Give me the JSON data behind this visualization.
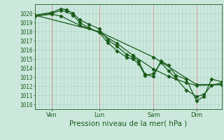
{
  "title": "",
  "xlabel": "Pression niveau de la mer( hPa )",
  "bg_color": "#cce8dd",
  "grid_color_major": "#aad4c8",
  "grid_color_minor": "#bbddd4",
  "line_color": "#1a5c1a",
  "vline_color": "#cc9999",
  "ylim": [
    1009.5,
    1021.0
  ],
  "yticks": [
    1010,
    1011,
    1012,
    1013,
    1014,
    1015,
    1016,
    1017,
    1018,
    1019,
    1020
  ],
  "xtick_labels": [
    "Ven",
    "Lun",
    "Sam",
    "Dim"
  ],
  "xtick_positions": [
    0.09,
    0.345,
    0.635,
    0.865
  ],
  "vline_positions": [
    0.09,
    0.345,
    0.635,
    0.865
  ],
  "line1_x": [
    0.0,
    0.09,
    0.14,
    0.17,
    0.205,
    0.24,
    0.29,
    0.345,
    0.39,
    0.44,
    0.49,
    0.525,
    0.555,
    0.59,
    0.635,
    0.675,
    0.715,
    0.755,
    0.81,
    0.865,
    0.905,
    0.945,
    1.0
  ],
  "line1_y": [
    1019.8,
    1020.1,
    1020.5,
    1020.4,
    1020.0,
    1019.3,
    1018.8,
    1018.3,
    1017.1,
    1016.4,
    1015.5,
    1015.2,
    1014.8,
    1013.3,
    1013.1,
    1014.8,
    1014.3,
    1013.2,
    1012.8,
    1010.4,
    1010.9,
    1012.8,
    1012.5
  ],
  "line2_x": [
    0.0,
    0.09,
    0.14,
    0.17,
    0.205,
    0.24,
    0.29,
    0.345,
    0.39,
    0.44,
    0.49,
    0.525,
    0.555,
    0.59,
    0.635,
    0.675,
    0.715,
    0.755,
    0.81,
    0.865,
    0.905,
    0.945,
    1.0
  ],
  "line2_y": [
    1019.7,
    1020.0,
    1020.3,
    1020.2,
    1019.8,
    1019.0,
    1018.4,
    1017.9,
    1016.8,
    1015.9,
    1015.2,
    1015.0,
    1014.5,
    1013.2,
    1013.4,
    1014.6,
    1013.7,
    1012.9,
    1011.6,
    1010.9,
    1011.1,
    1012.1,
    1012.4
  ],
  "line3_x": [
    0.0,
    0.09,
    0.14,
    0.24,
    0.345,
    0.44,
    0.525,
    0.635,
    0.715,
    0.81,
    0.865,
    1.0
  ],
  "line3_y": [
    1019.7,
    1019.9,
    1019.7,
    1018.7,
    1017.9,
    1016.7,
    1015.4,
    1013.9,
    1013.1,
    1012.4,
    1012.1,
    1012.2
  ],
  "line4_x": [
    0.0,
    0.345,
    0.635,
    0.865,
    1.0
  ],
  "line4_y": [
    1019.8,
    1018.0,
    1015.2,
    1012.2,
    1012.2
  ]
}
